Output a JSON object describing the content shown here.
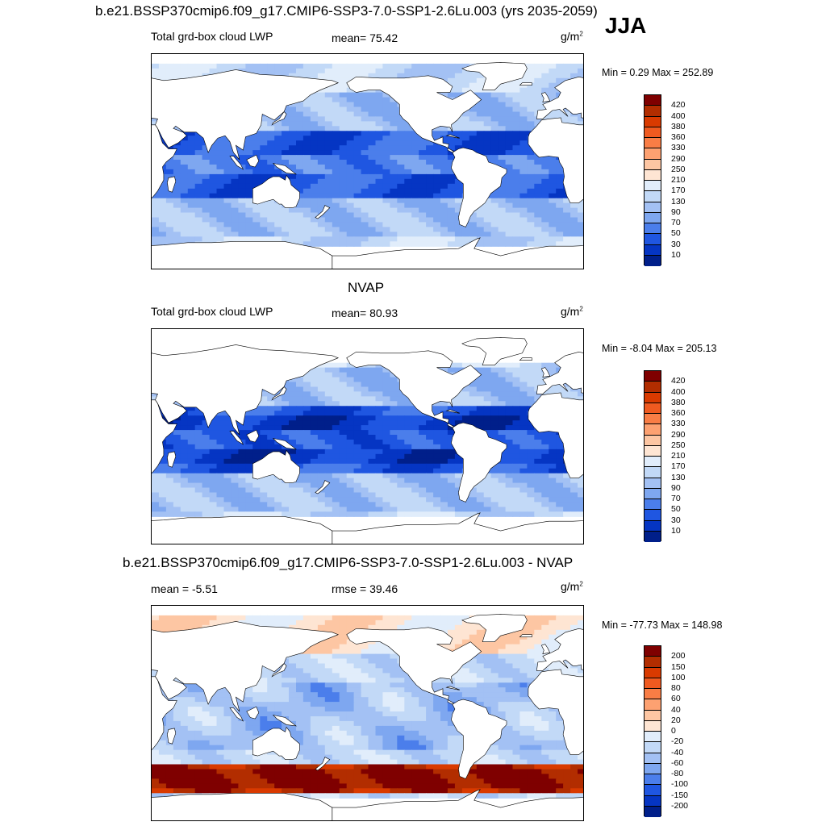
{
  "season": "JJA",
  "panels": [
    {
      "id": "model",
      "title": "b.e21.BSSP370cmip6.f09_g17.CMIP6-SSP3-7.0-SSP1-2.6Lu.003 (yrs 2035-2059)",
      "left_label": "Total grd-box cloud LWP",
      "center_label": "mean=  75.42",
      "units": "g/m",
      "units_sup": "2",
      "minmax": "Min =   0.29 Max = 252.89",
      "colorbar": {
        "labels": [
          "420",
          "400",
          "380",
          "360",
          "330",
          "290",
          "250",
          "210",
          "170",
          "130",
          "90",
          "70",
          "50",
          "30",
          "10"
        ],
        "colors": [
          "#7f0000",
          "#b22d00",
          "#d93a00",
          "#ef5a20",
          "#f97d45",
          "#fda171",
          "#fdc6a3",
          "#fee5d3",
          "#e1edfb",
          "#c2d9f7",
          "#a3c1f4",
          "#7ea7f0",
          "#4b7eeb",
          "#1f56e1",
          "#0535c3",
          "#001f8a"
        ]
      },
      "field": "lwp_model"
    },
    {
      "id": "obs",
      "title": "NVAP",
      "left_label": "Total grd-box cloud LWP",
      "center_label": "mean=  80.93",
      "units": "g/m",
      "units_sup": "2",
      "minmax": "Min =  -8.04 Max = 205.13",
      "colorbar": {
        "labels": [
          "420",
          "400",
          "380",
          "360",
          "330",
          "290",
          "250",
          "210",
          "170",
          "130",
          "90",
          "70",
          "50",
          "30",
          "10"
        ],
        "colors": [
          "#7f0000",
          "#b22d00",
          "#d93a00",
          "#ef5a20",
          "#f97d45",
          "#fda171",
          "#fdc6a3",
          "#fee5d3",
          "#e1edfb",
          "#c2d9f7",
          "#a3c1f4",
          "#7ea7f0",
          "#4b7eeb",
          "#1f56e1",
          "#0535c3",
          "#001f8a"
        ]
      },
      "field": "lwp_obs"
    },
    {
      "id": "diff",
      "title": "b.e21.BSSP370cmip6.f09_g17.CMIP6-SSP3-7.0-SSP1-2.6Lu.003 - NVAP",
      "left_label": "mean =  -5.51",
      "center_label": "rmse =  39.46",
      "units": "g/m",
      "units_sup": "2",
      "minmax": "Min = -77.73 Max = 148.98",
      "colorbar": {
        "labels": [
          "200",
          "150",
          "100",
          "80",
          "60",
          "40",
          "20",
          "0",
          "-20",
          "-40",
          "-60",
          "-80",
          "-100",
          "-150",
          "-200"
        ],
        "colors": [
          "#7f0000",
          "#b22d00",
          "#d93a00",
          "#ef5a20",
          "#f97d45",
          "#fda171",
          "#fdc6a3",
          "#fee5d3",
          "#e1edfb",
          "#c2d9f7",
          "#a3c1f4",
          "#7ea7f0",
          "#4b7eeb",
          "#1f56e1",
          "#0535c3",
          "#001f8a"
        ]
      },
      "field": "lwp_diff"
    }
  ]
}
